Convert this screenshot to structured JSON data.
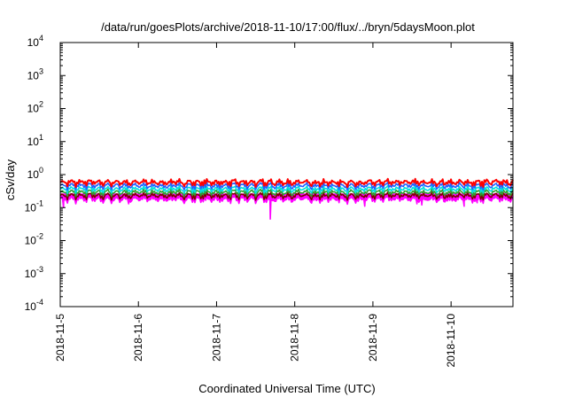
{
  "chart_data": {
    "type": "area",
    "title": "/data/run/goesPlots/archive/2018-11-10/17:00/flux/../bryn/5daysMoon.plot",
    "xlabel": "Coordinated Universal Time (UTC)",
    "ylabel": "cSv/day",
    "yscale": "log",
    "ylim": [
      0.0001,
      10000
    ],
    "yticks": [
      {
        "base": "10",
        "exp": "-4",
        "value": 0.0001
      },
      {
        "base": "10",
        "exp": "-3",
        "value": 0.001
      },
      {
        "base": "10",
        "exp": "-2",
        "value": 0.01
      },
      {
        "base": "10",
        "exp": "-1",
        "value": 0.1
      },
      {
        "base": "10",
        "exp": "0",
        "value": 1
      },
      {
        "base": "10",
        "exp": "1",
        "value": 10
      },
      {
        "base": "10",
        "exp": "2",
        "value": 100
      },
      {
        "base": "10",
        "exp": "3",
        "value": 1000
      },
      {
        "base": "10",
        "exp": "4",
        "value": 10000
      }
    ],
    "xlim": [
      "2018-11-05 00:00",
      "2018-11-10 19:00"
    ],
    "xticks": [
      {
        "label": "2018-11-5",
        "value": "2018-11-05"
      },
      {
        "label": "2018-11-6",
        "value": "2018-11-06"
      },
      {
        "label": "2018-11-7",
        "value": "2018-11-07"
      },
      {
        "label": "2018-11-8",
        "value": "2018-11-08"
      },
      {
        "label": "2018-11-9",
        "value": "2018-11-09"
      },
      {
        "label": "2018-11-10",
        "value": "2018-11-10"
      }
    ],
    "grid": false,
    "legend": "none",
    "series": [
      {
        "color": "#ff00ff",
        "fill": true,
        "baseline": 0.18,
        "dips": [
          {
            "x": "2018-11-05 01:00",
            "y": 0.1
          },
          {
            "x": "2018-11-05 21:00",
            "y": 0.13
          },
          {
            "x": "2018-11-07 16:30",
            "y": 0.045
          },
          {
            "x": "2018-11-08 21:30",
            "y": 0.11
          },
          {
            "x": "2018-11-09 13:30",
            "y": 0.13
          },
          {
            "x": "2018-11-09 15:00",
            "y": 0.12
          },
          {
            "x": "2018-11-10 04:00",
            "y": 0.11
          },
          {
            "x": "2018-11-10 08:00",
            "y": 0.14
          }
        ]
      },
      {
        "color": "#7f0000",
        "baseline": 0.23
      },
      {
        "color": "#2f9e2f",
        "baseline": 0.29
      },
      {
        "color": "#00e0e0",
        "baseline": 0.36
      },
      {
        "color": "#1f5fff",
        "baseline": 0.46
      },
      {
        "color": "#ff0000",
        "baseline": 0.58
      }
    ]
  }
}
